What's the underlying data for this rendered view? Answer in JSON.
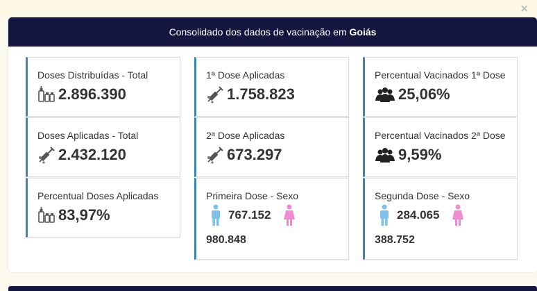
{
  "dialog": {
    "close_label": "×",
    "header_prefix": "Consolidado dos dados de vacinação em",
    "header_state": "Goiás"
  },
  "cards": {
    "doses_distribuidas": {
      "title": "Doses Distribuídas - Total",
      "value": "2.896.390",
      "icon": "vaccine-vials-icon"
    },
    "doses_aplicadas": {
      "title": "Doses Aplicadas - Total",
      "value": "2.432.120",
      "icon": "syringe-icon"
    },
    "percentual_doses": {
      "title": "Percentual Doses Aplicadas",
      "value": "83,97%",
      "icon": "vaccine-vials-icon"
    },
    "primeira_dose": {
      "title": "1ª Dose Aplicadas",
      "value": "1.758.823",
      "icon": "syringe-icon"
    },
    "segunda_dose": {
      "title": "2ª Dose Aplicadas",
      "value": "673.297",
      "icon": "syringe-icon"
    },
    "primeira_sexo": {
      "title": "Primeira Dose - Sexo",
      "male": "767.152",
      "female": "980.848",
      "icons": [
        "male-icon",
        "female-icon"
      ]
    },
    "perc_vac_1": {
      "title": "Percentual Vacinados 1ª Dose",
      "value": "25,06%",
      "icon": "people-group-icon"
    },
    "perc_vac_2": {
      "title": "Percentual Vacinados 2ª Dose",
      "value": "9,59%",
      "icon": "people-group-icon"
    },
    "segunda_sexo": {
      "title": "Segunda Dose - Sexo",
      "male": "284.065",
      "female": "388.752",
      "icons": [
        "male-icon",
        "female-icon"
      ]
    }
  },
  "colors": {
    "header_bg": "#15163f",
    "card_accent": "#3c85b4",
    "male": "#7ec1ec",
    "female": "#f08bd0"
  }
}
